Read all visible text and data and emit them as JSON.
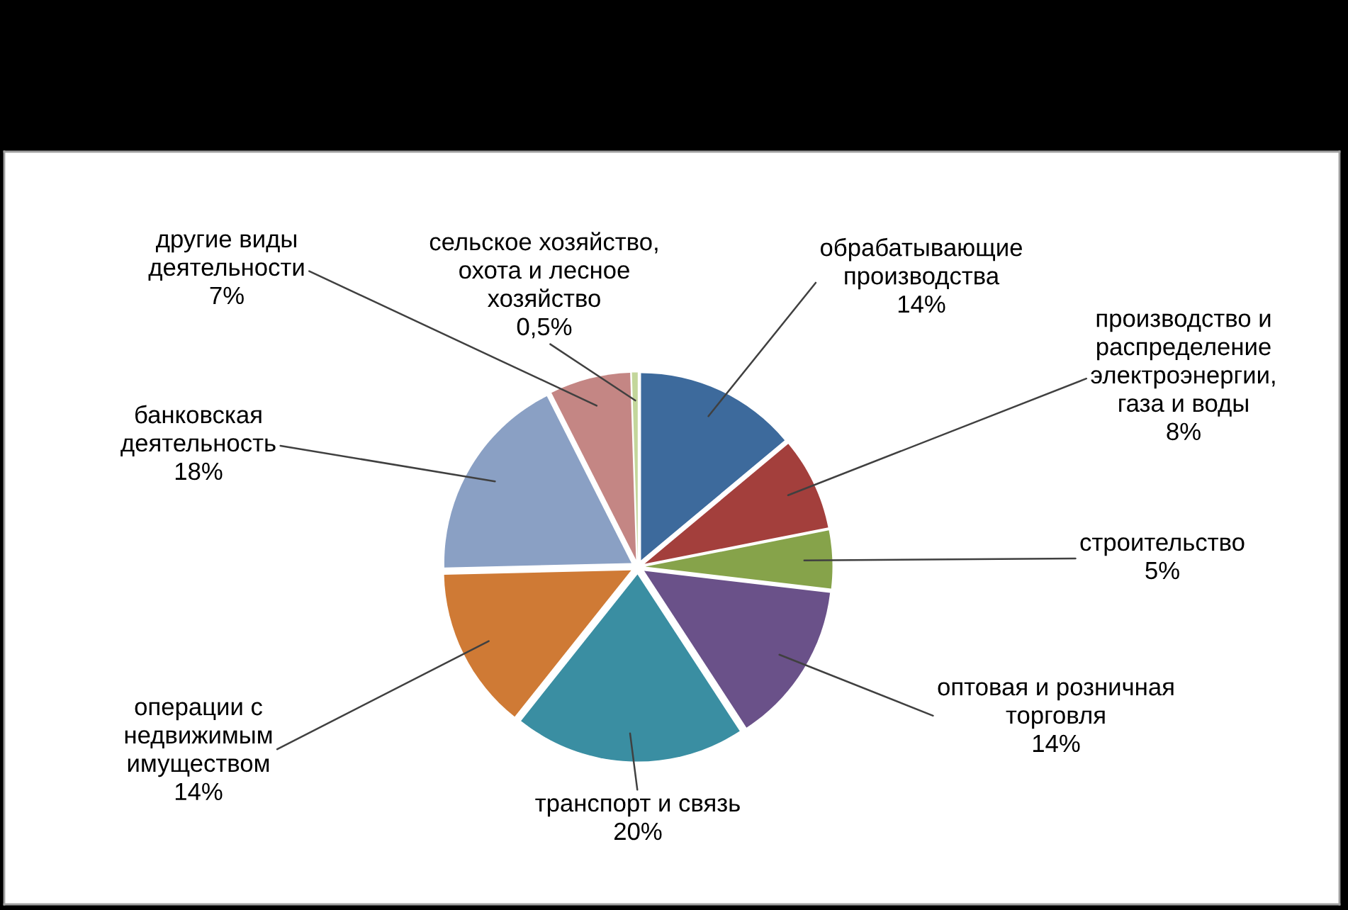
{
  "chart_data": {
    "type": "pie",
    "categories": [
      "обрабатывающие производства",
      "производство и распределение электроэнергии, газа и воды",
      "строительство",
      "оптовая и розничная торговля",
      "транспорт и связь",
      "операции с недвижимым имуществом",
      "банковская деятельность",
      "другие виды деятельности",
      "сельское хозяйство, охота и лесное хозяйство"
    ],
    "values": [
      14,
      8,
      5,
      14,
      20,
      14,
      18,
      7,
      0.5
    ],
    "value_labels": [
      "14%",
      "8%",
      "5%",
      "14%",
      "20%",
      "14%",
      "18%",
      "7%",
      "0,5%"
    ],
    "colors": [
      "#3d6a9c",
      "#a33f3c",
      "#86a34a",
      "#6a5189",
      "#3a8ea2",
      "#cf7a35",
      "#8aa0c4",
      "#c48684",
      "#c3d69b"
    ]
  }
}
